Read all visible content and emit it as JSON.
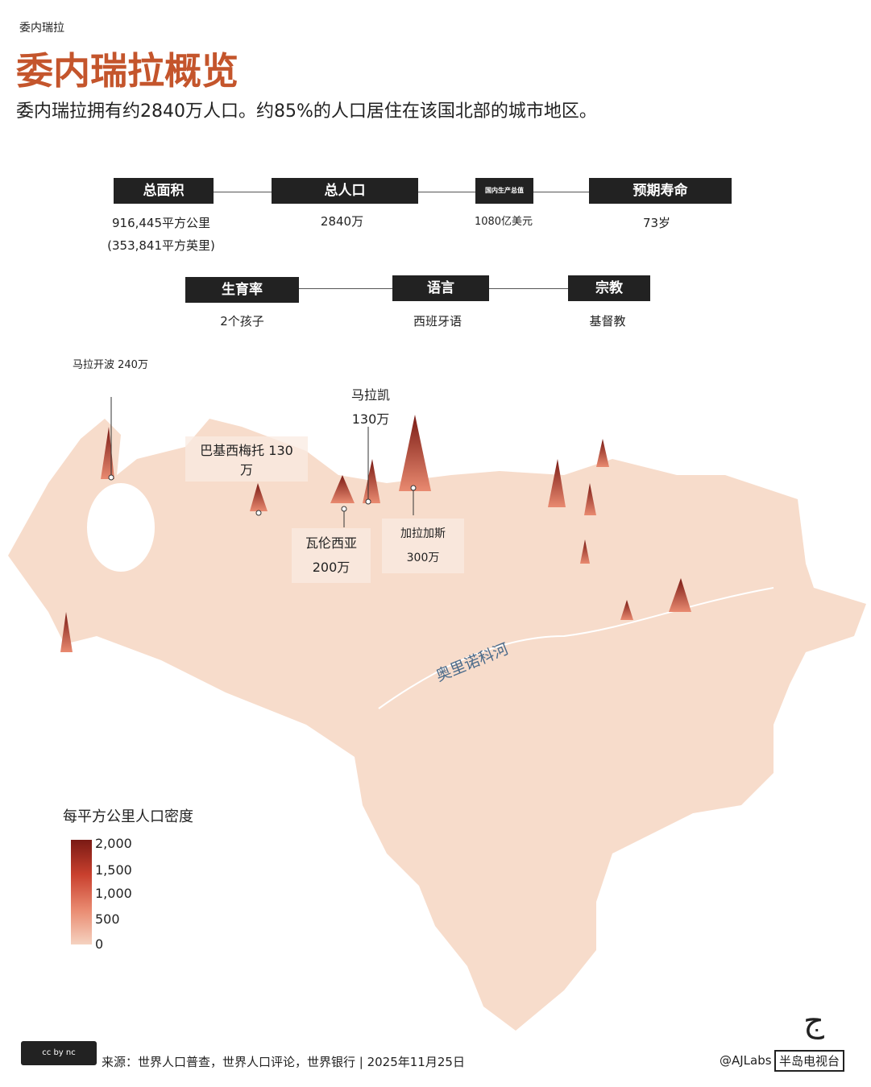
{
  "kicker": "委内瑞拉",
  "title": "委内瑞拉概览",
  "subtitle": "委内瑞拉拥有约2840万人口。约85%的人口居住在该国北部的城市地区。",
  "stats": [
    {
      "label": "总面积",
      "value": "916,445平方公里",
      "value2": "(353,841平方英里)"
    },
    {
      "label": "总人口",
      "value": "2840万"
    },
    {
      "label": "国内生产总值",
      "value": "1080亿美元"
    },
    {
      "label": "预期寿命",
      "value": "73岁"
    },
    {
      "label": "生育率",
      "value": "2个孩子"
    },
    {
      "label": "语言",
      "value": "西班牙语"
    },
    {
      "label": "宗教",
      "value": "基督教"
    }
  ],
  "cities": [
    {
      "name": "马拉开波 240万"
    },
    {
      "name": "巴基西梅托 130",
      "name2": "万"
    },
    {
      "name": "马拉凯",
      "name2": "130万"
    },
    {
      "name": "瓦伦西亚",
      "name2": "200万"
    },
    {
      "name": "加拉加斯",
      "name2": "300万"
    }
  ],
  "river": "奥里诺科河",
  "legend": {
    "title": "每平方公里人口密度",
    "ticks": [
      "2,000",
      "1,500",
      "1,000",
      "500",
      "0"
    ],
    "colors": [
      "#7a1a14",
      "#c9402e",
      "#e98a70",
      "#f5d2c0"
    ]
  },
  "footer": {
    "license": "cc by nc",
    "source": "来源：世界人口普查，世界人口评论，世界银行 | 2025年11月25日",
    "handle": "@AJLabs",
    "brand": "半岛电视台"
  },
  "colors": {
    "accent": "#c4552c",
    "land": "#f7dccb"
  }
}
